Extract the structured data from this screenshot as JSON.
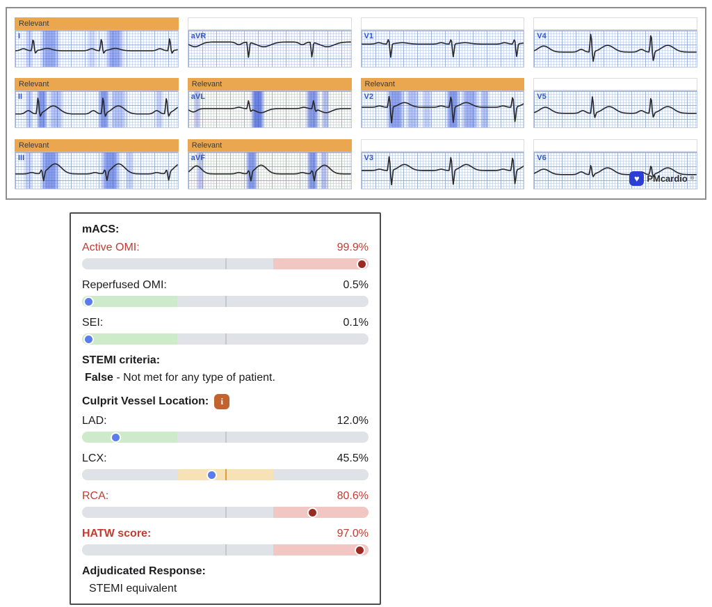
{
  "ecg": {
    "relevant_label": "Relevant",
    "brand": {
      "name": "PMcardio",
      "reg": "®",
      "heart_icon": "♥"
    },
    "colors": {
      "banner": "#EAA74F",
      "band": "#3C5BD9",
      "lead_label": "#2F55CC",
      "logo_blue": "#2B3FD6"
    },
    "leads": [
      {
        "label": "I",
        "relevant": true,
        "bands": [
          [
            0.06,
            0.05,
            0.25
          ],
          [
            0.15,
            0.13,
            0.5
          ],
          [
            0.44,
            0.06,
            0.2
          ],
          [
            0.55,
            0.12,
            0.5
          ]
        ],
        "wave": {
          "base": 30,
          "qrs": [
            0.11,
            0.53,
            0.95
          ],
          "p": 3,
          "r": 20,
          "s": 4,
          "t": 3.5,
          "toff": 20,
          "tw": 7
        }
      },
      {
        "label": "II",
        "relevant": true,
        "bands": [
          [
            0.06,
            0.05,
            0.3
          ],
          [
            0.13,
            0.07,
            0.6
          ],
          [
            0.2,
            0.1,
            0.35
          ],
          [
            0.51,
            0.07,
            0.6
          ],
          [
            0.58,
            0.11,
            0.35
          ],
          [
            0.86,
            0.05,
            0.25
          ]
        ],
        "wave": {
          "base": 34,
          "qrs": [
            0.14,
            0.54,
            0.93
          ],
          "p": 5,
          "r": 27,
          "s": 5,
          "t": 12,
          "toff": 22,
          "tw": 9
        }
      },
      {
        "label": "III",
        "relevant": true,
        "bands": [
          [
            0.05,
            0.06,
            0.25
          ],
          [
            0.15,
            0.13,
            0.6
          ],
          [
            0.52,
            0.13,
            0.6
          ],
          [
            0.68,
            0.05,
            0.25
          ]
        ],
        "wave": {
          "base": 32,
          "qrs": [
            0.16,
            0.55,
            0.93
          ],
          "p": 2,
          "r": 5,
          "s": 13,
          "t": 15,
          "toff": 20,
          "tw": 9
        }
      },
      {
        "label": "aVR",
        "relevant": false,
        "bands": [],
        "wave": {
          "base": 17,
          "qrs": [
            0.37,
            0.76
          ],
          "p": -4,
          "r": -24,
          "s": 0,
          "t": -7,
          "toff": 22,
          "tw": 10,
          "extras": [
            {
              "c": 0.04,
              "a": -7,
              "w": 8
            }
          ]
        }
      },
      {
        "label": "aVL",
        "relevant": true,
        "bands": [
          [
            0.03,
            0.05,
            0.3
          ],
          [
            0.38,
            0.09,
            0.75
          ],
          [
            0.72,
            0.09,
            0.6
          ],
          [
            0.82,
            0.05,
            0.35
          ]
        ],
        "wave": {
          "base": 26,
          "qrs": [
            0.37,
            0.77
          ],
          "p": 2,
          "r": 13,
          "s": 3,
          "t": -6,
          "toff": 18,
          "tw": 8,
          "extras": [
            {
              "c": 0.03,
              "a": -5,
              "w": 5
            }
          ]
        }
      },
      {
        "label": "aVF",
        "relevant": true,
        "bands": [
          [
            0.05,
            0.05,
            0.3
          ],
          [
            0.35,
            0.08,
            0.6
          ],
          [
            0.73,
            0.07,
            0.6
          ],
          [
            0.81,
            0.05,
            0.35
          ]
        ],
        "wave": {
          "base": 32,
          "qrs": [
            0.37,
            0.76
          ],
          "p": 2,
          "r": 4,
          "s": 13,
          "t": 13,
          "toff": 18,
          "tw": 8,
          "extras": [
            {
              "c": 0.05,
              "a": 12,
              "w": 7
            }
          ]
        }
      },
      {
        "label": "V1",
        "relevant": false,
        "bands": [],
        "wave": {
          "base": 20,
          "qrs": [
            0.165,
            0.55,
            0.94
          ],
          "p": 2,
          "r": 7,
          "s": 20,
          "t": 2,
          "toff": 20,
          "tw": 8
        }
      },
      {
        "label": "V2",
        "relevant": true,
        "bands": [
          [
            0.15,
            0.12,
            0.55
          ],
          [
            0.27,
            0.09,
            0.35
          ],
          [
            0.37,
            0.07,
            0.25
          ],
          [
            0.52,
            0.09,
            0.6
          ],
          [
            0.61,
            0.12,
            0.45
          ],
          [
            0.73,
            0.06,
            0.35
          ]
        ],
        "wave": {
          "base": 24,
          "qrs": [
            0.17,
            0.55,
            0.93
          ],
          "p": 2,
          "r": 17,
          "s": 24,
          "t": 7,
          "toff": 22,
          "tw": 8
        }
      },
      {
        "label": "V3",
        "relevant": false,
        "bands": [],
        "wave": {
          "base": 27,
          "qrs": [
            0.17,
            0.55,
            0.93
          ],
          "p": 2,
          "r": 22,
          "s": 22,
          "t": 9,
          "toff": 22,
          "tw": 8
        }
      },
      {
        "label": "V4",
        "relevant": false,
        "bands": [],
        "wave": {
          "base": 32,
          "qrs": [
            0.35,
            0.72
          ],
          "p": 4,
          "r": 30,
          "s": 15,
          "t": 10,
          "toff": 24,
          "tw": 9,
          "extras": [
            {
              "c": 0.06,
              "a": 9,
              "w": 8
            }
          ]
        }
      },
      {
        "label": "V5",
        "relevant": false,
        "bands": [],
        "wave": {
          "base": 33,
          "qrs": [
            0.36,
            0.72
          ],
          "p": 4,
          "r": 27,
          "s": 7,
          "t": 10,
          "toff": 24,
          "tw": 9,
          "extras": [
            {
              "c": 0.07,
              "a": 9,
              "w": 8
            }
          ]
        }
      },
      {
        "label": "V6",
        "relevant": false,
        "bands": [],
        "logo": true,
        "wave": {
          "base": 33,
          "qrs": [
            0.35,
            0.72
          ],
          "p": 4,
          "r": 15,
          "s": 4,
          "t": 10,
          "toff": 24,
          "tw": 9,
          "extras": [
            {
              "c": 0.06,
              "a": 8,
              "w": 8
            }
          ]
        }
      }
    ]
  },
  "panel": {
    "title": "mACS:",
    "colors": {
      "red_text": "#C23B31",
      "zone_low": "#CDEBCA",
      "zone_mid": "#F7E2B6",
      "zone_high": "#F2C6C3",
      "zone_gray": "#DFE3E8",
      "tick_gray": "#C2C7D0",
      "tick_orange": "#DE9A40",
      "dot_blue": "#5A7CEE",
      "dot_dark_red": "#9B2B22",
      "info_icon_bg": "#C2622E"
    },
    "rows": [
      {
        "type": "score",
        "label": "Active OMI:",
        "value": "99.9%",
        "pct": 99.9,
        "zone": "high",
        "red": true
      },
      {
        "type": "score",
        "label": "Reperfused OMI:",
        "value": "0.5%",
        "pct": 0.5,
        "zone": "low"
      },
      {
        "type": "score",
        "label": "SEI:",
        "value": "0.1%",
        "pct": 0.1,
        "zone": "low"
      },
      {
        "type": "heading",
        "label": "STEMI criteria:"
      },
      {
        "type": "text",
        "bold": "False",
        "rest": " - Not met for any type of patient."
      },
      {
        "type": "heading-info",
        "label": "Culprit Vessel Location:",
        "icon": "i"
      },
      {
        "type": "score",
        "label": "LAD:",
        "value": "12.0%",
        "pct": 12.0,
        "zone": "low"
      },
      {
        "type": "score",
        "label": "LCX:",
        "value": "45.5%",
        "pct": 45.5,
        "zone": "mid"
      },
      {
        "type": "score",
        "label": "RCA:",
        "value": "80.6%",
        "pct": 80.6,
        "zone": "high",
        "red": true
      },
      {
        "type": "score",
        "label": "HATW score:",
        "value": "97.0%",
        "pct": 97.0,
        "zone": "high",
        "red": true,
        "bold": true
      },
      {
        "type": "heading",
        "label": "Adjudicated Response:"
      },
      {
        "type": "text",
        "rest": "STEMI equivalent",
        "indent": true
      }
    ]
  }
}
